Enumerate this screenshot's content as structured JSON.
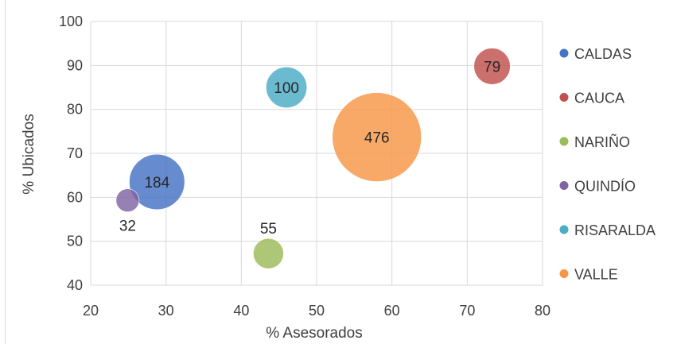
{
  "chart_data": {
    "type": "bubble",
    "title": "",
    "xlabel": "% Asesorados",
    "ylabel": "% Ubicados",
    "xlim": [
      20,
      80
    ],
    "ylim": [
      40,
      100
    ],
    "xticks": [
      "20",
      "30",
      "40",
      "50",
      "60",
      "70",
      "80"
    ],
    "yticks": [
      "40",
      "50",
      "60",
      "70",
      "80",
      "90",
      "100"
    ],
    "grid": true,
    "legend_position": "right",
    "series": [
      {
        "name": "CALDAS",
        "x": 28.8,
        "y": 63.5,
        "size": 184,
        "label": "184",
        "color": "#4472C4"
      },
      {
        "name": "CAUCA",
        "x": 73.3,
        "y": 89.8,
        "size": 79,
        "label": "79",
        "color": "#C0504D"
      },
      {
        "name": "NARIÑO",
        "x": 43.6,
        "y": 47.2,
        "size": 55,
        "label": "55",
        "color": "#9BBB59"
      },
      {
        "name": "QUINDÍO",
        "x": 24.9,
        "y": 59.3,
        "size": 32,
        "label": "32",
        "color": "#8064A2"
      },
      {
        "name": "RISARALDA",
        "x": 46.0,
        "y": 85.0,
        "size": 100,
        "label": "100",
        "color": "#4BACC6"
      },
      {
        "name": "VALLE",
        "x": 58.0,
        "y": 73.7,
        "size": 476,
        "label": "476",
        "color": "#F79646"
      }
    ]
  }
}
